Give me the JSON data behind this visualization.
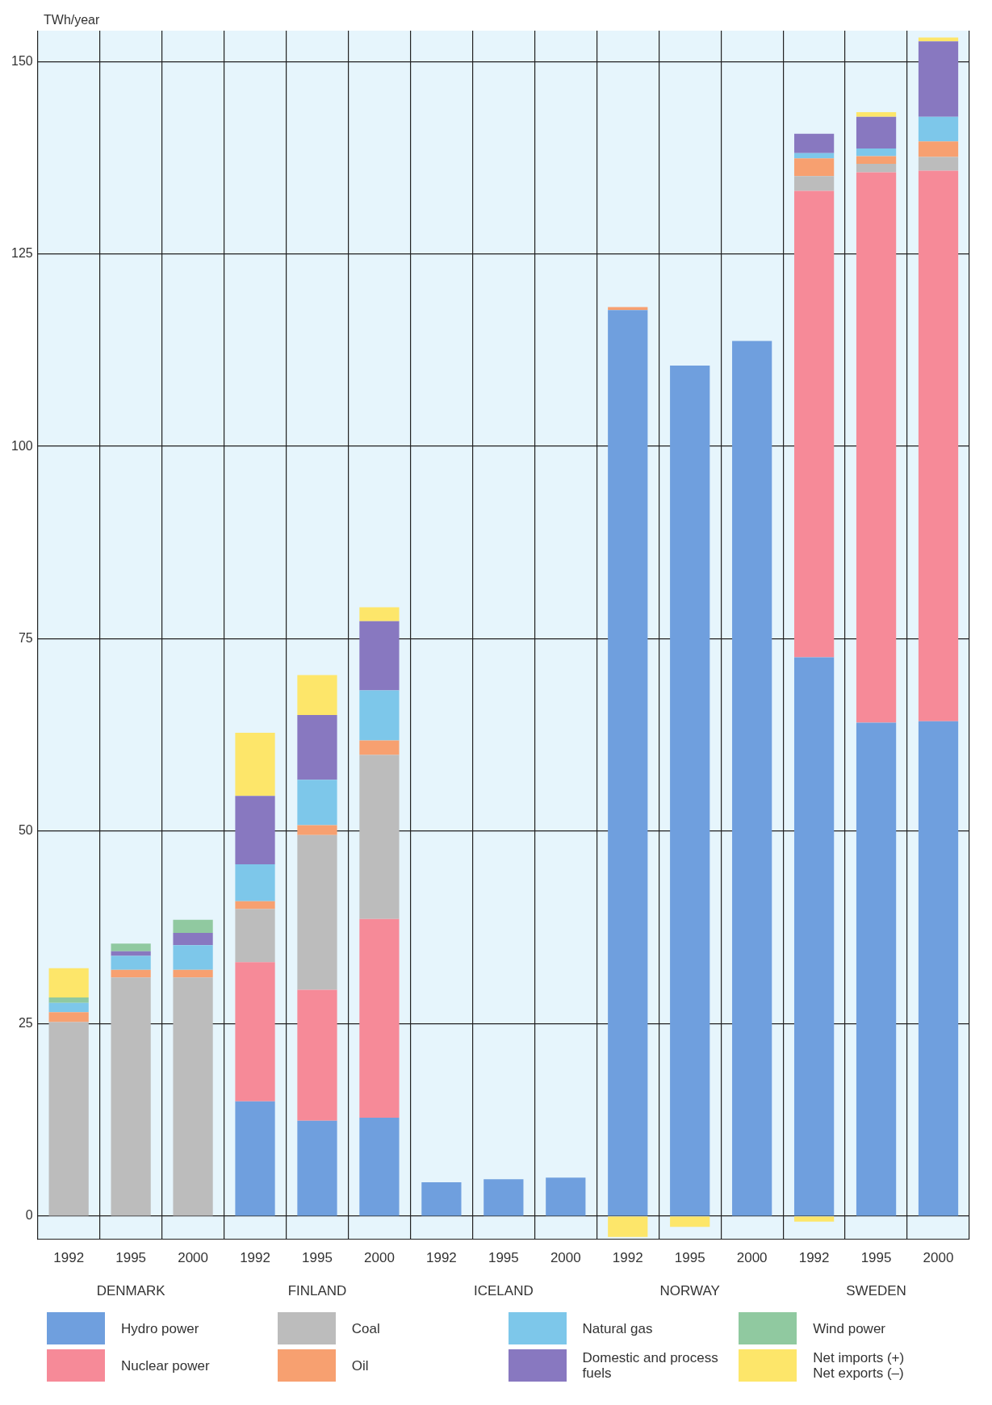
{
  "chart_data": {
    "type": "bar",
    "stacked": true,
    "ylabel": "TWh/year",
    "categories": [
      "1992",
      "1995",
      "2000",
      "1992",
      "1995",
      "2000",
      "1992",
      "1995",
      "2000",
      "1992",
      "1995",
      "2000",
      "1992",
      "1995",
      "2000"
    ],
    "annotations": [
      "DENMARK",
      "FINLAND",
      "ICELAND",
      "NORWAY",
      "SWEDEN"
    ],
    "ylim": [
      -3,
      154
    ],
    "yticks": [
      0,
      25,
      50,
      75,
      100,
      125,
      150
    ],
    "grid": true,
    "legend": "bottom",
    "series": [
      {
        "name": "Hydro power",
        "color": "#6f9fde",
        "values": [
          null,
          null,
          null,
          14.9,
          12.4,
          12.8,
          4.4,
          4.8,
          5.0,
          117.7,
          110.5,
          113.7,
          72.6,
          64.1,
          64.3
        ]
      },
      {
        "name": "Nuclear power",
        "color": "#f68a98",
        "values": [
          null,
          null,
          null,
          18.1,
          17.0,
          25.8,
          null,
          null,
          null,
          null,
          null,
          null,
          60.6,
          71.5,
          71.5
        ]
      },
      {
        "name": "Coal",
        "color": "#bcbcbc",
        "values": [
          25.2,
          31.0,
          31.0,
          6.9,
          20.1,
          21.3,
          null,
          null,
          null,
          null,
          null,
          null,
          1.9,
          1.1,
          1.8
        ]
      },
      {
        "name": "Oil",
        "color": "#f7a070",
        "values": [
          1.3,
          1.0,
          1.0,
          1.0,
          1.3,
          1.9,
          null,
          null,
          null,
          0.4,
          null,
          null,
          2.3,
          1.0,
          2.0
        ]
      },
      {
        "name": "Natural gas",
        "color": "#7dc7ea",
        "values": [
          1.2,
          1.8,
          3.2,
          4.8,
          5.9,
          6.5,
          null,
          null,
          null,
          null,
          null,
          null,
          0.7,
          1.0,
          3.2
        ]
      },
      {
        "name": "Domestic and process fuels",
        "color": "#8878c0",
        "values": [
          null,
          0.6,
          1.6,
          8.9,
          8.4,
          9.0,
          null,
          null,
          null,
          null,
          null,
          null,
          2.5,
          4.1,
          9.8
        ]
      },
      {
        "name": "Wind power",
        "color": "#90c9a0",
        "values": [
          0.7,
          1.0,
          1.7,
          null,
          null,
          null,
          null,
          null,
          null,
          null,
          null,
          null,
          null,
          null,
          null
        ]
      },
      {
        "name": "Net imports (+)\nNet exports (–)",
        "color": "#fde66a",
        "values": [
          3.8,
          null,
          null,
          8.2,
          5.2,
          1.8,
          null,
          null,
          null,
          -2.7,
          -1.4,
          null,
          -0.7,
          0.6,
          0.5
        ]
      }
    ]
  }
}
